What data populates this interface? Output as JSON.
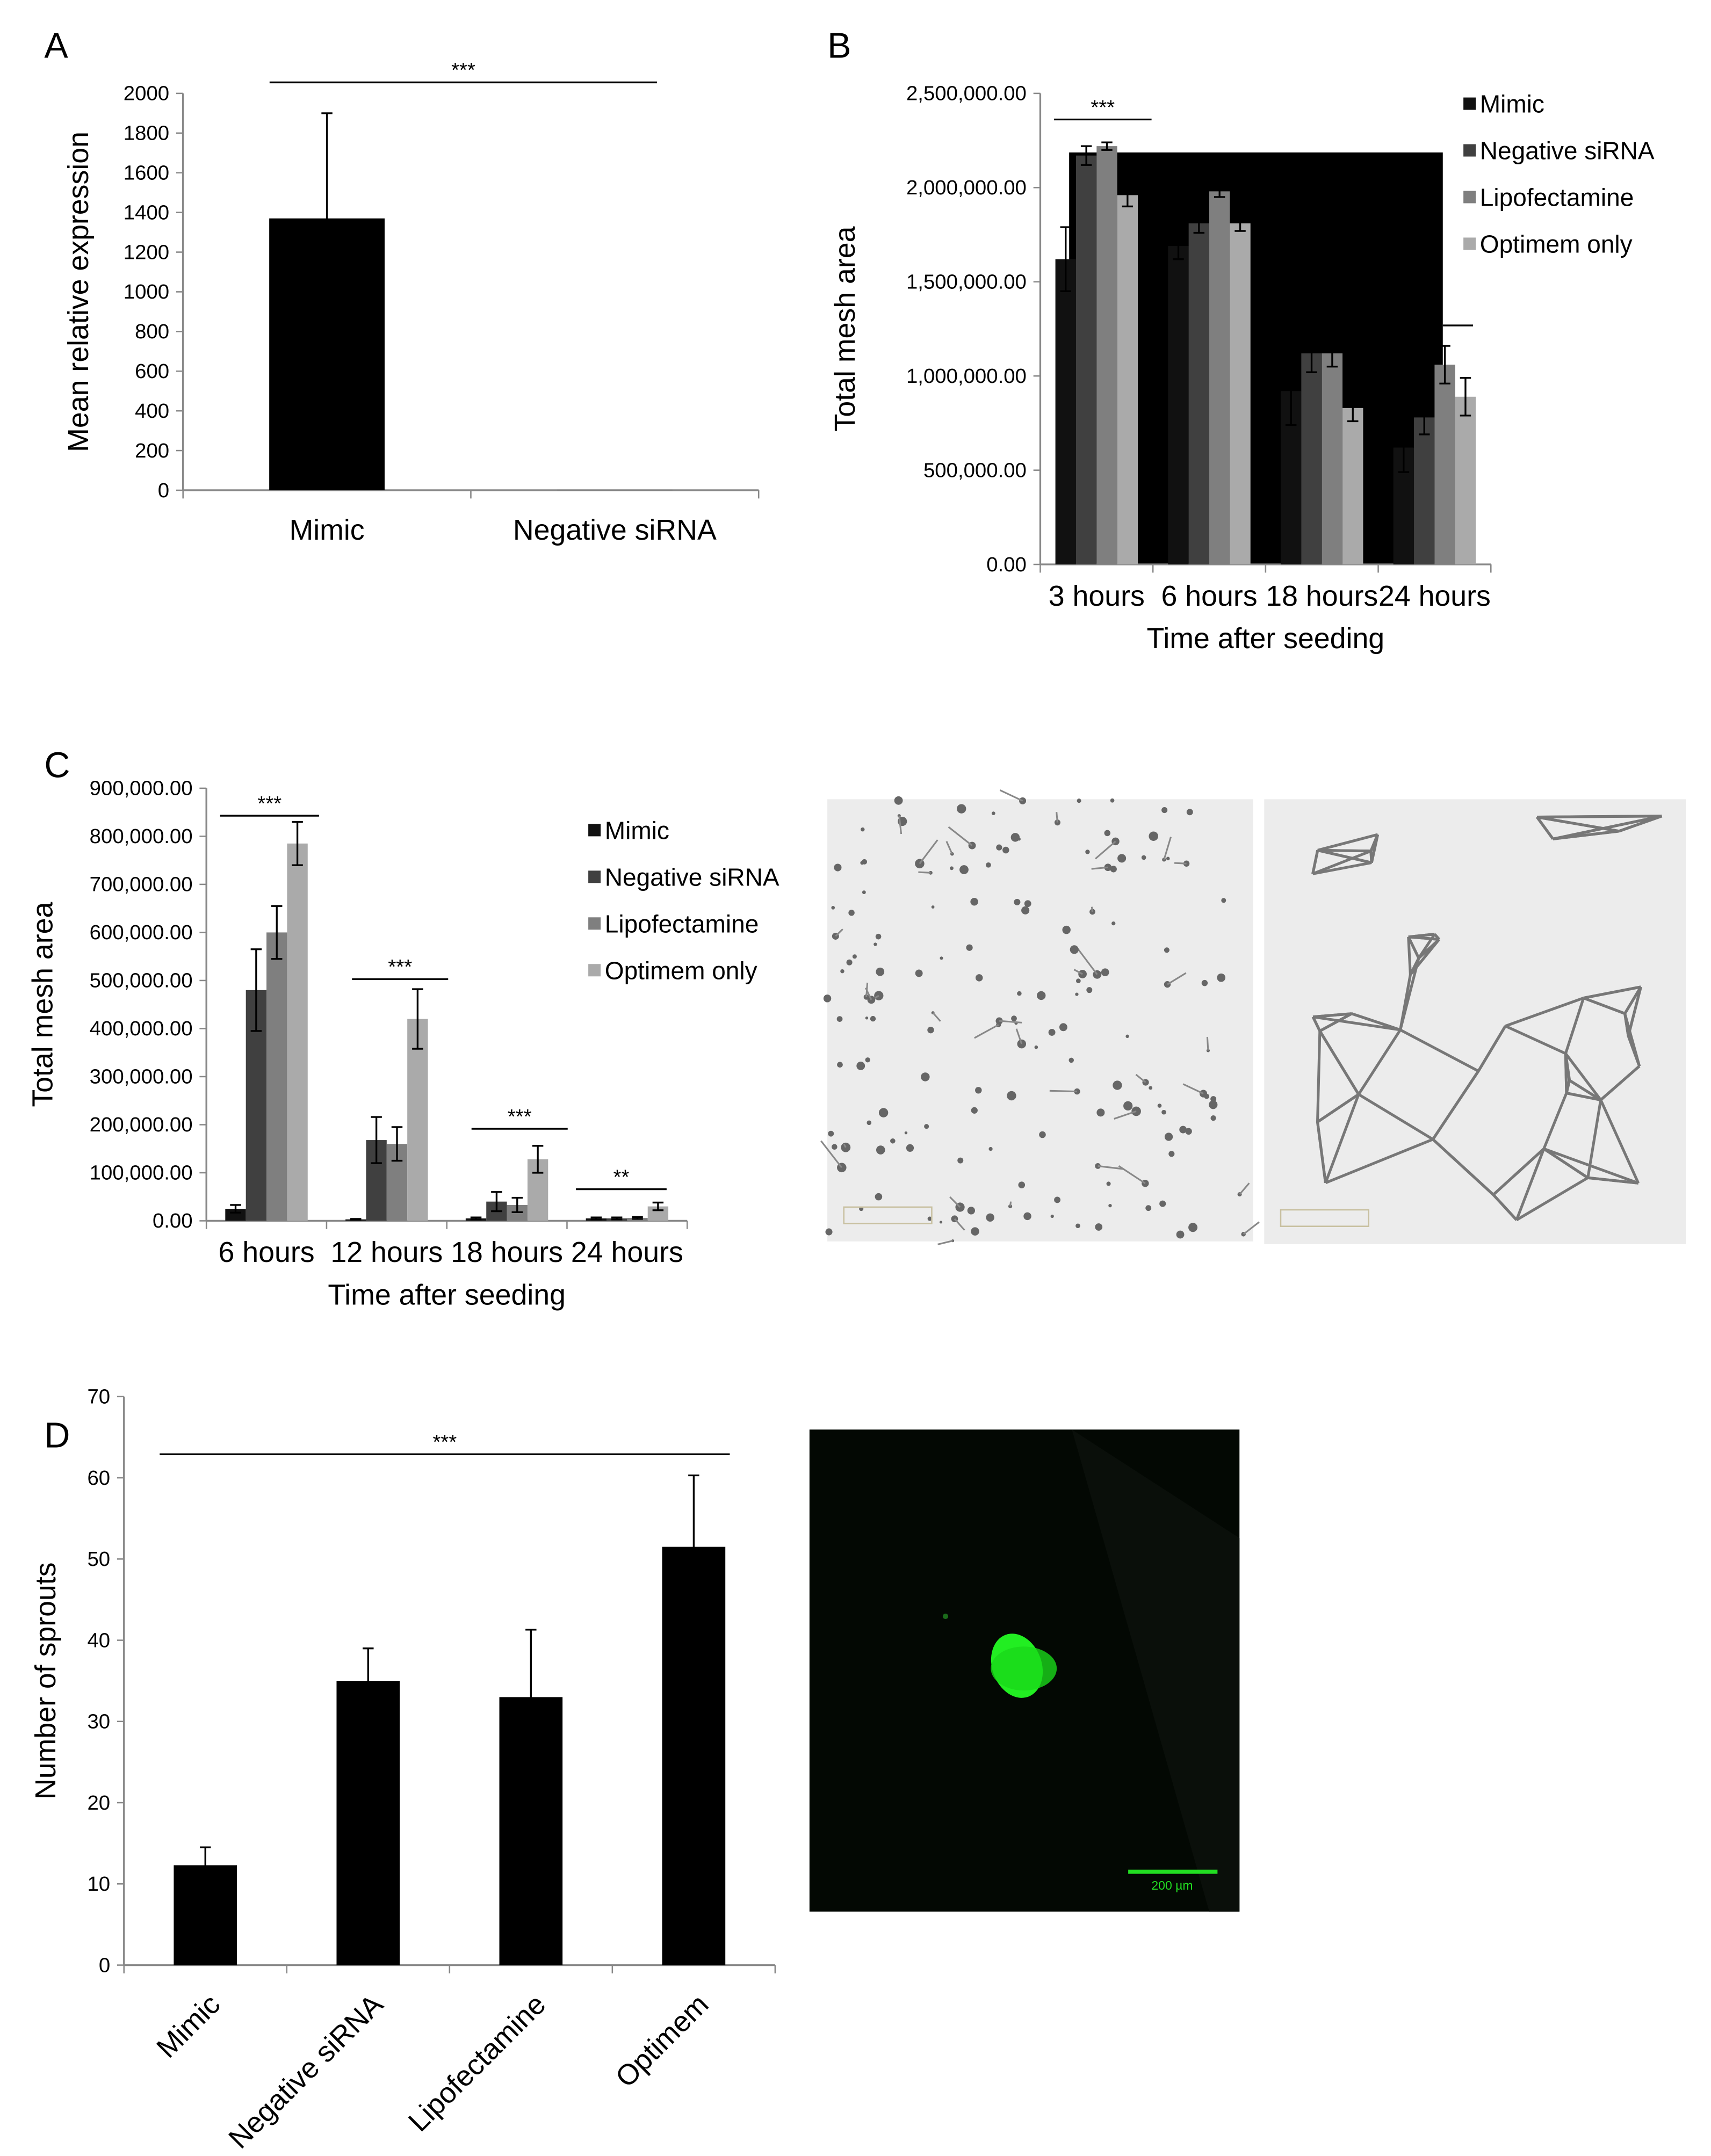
{
  "panels": {
    "a": "A",
    "b": "B",
    "c": "C",
    "d": "D"
  },
  "chart_data": [
    {
      "type": "bar",
      "panel": "A",
      "categories": [
        "Mimic",
        "Negative siRNA"
      ],
      "values": [
        1370,
        2
      ],
      "errors": [
        530,
        0
      ],
      "ylabel": "Mean relative expression",
      "xlabel": "",
      "ylim": [
        0,
        2000
      ],
      "yticks": [
        "0",
        "200",
        "400",
        "600",
        "800",
        "1000",
        "1200",
        "1400",
        "1600",
        "1800",
        "2000"
      ],
      "significance": [
        {
          "label": "***"
        }
      ],
      "colors": [
        "#000000"
      ]
    },
    {
      "type": "bar",
      "panel": "B",
      "categories": [
        "3 hours",
        "6 hours",
        "18 hours",
        "24 hours"
      ],
      "series": [
        {
          "name": "Mimic",
          "color": "#111111",
          "values": [
            1620000,
            1690000,
            920000,
            620000
          ],
          "errors": [
            170000,
            70000,
            180000,
            130000
          ]
        },
        {
          "name": "Negative siRNA",
          "color": "#404040",
          "values": [
            2170000,
            1810000,
            1120000,
            780000
          ],
          "errors": [
            50000,
            50000,
            100000,
            90000
          ]
        },
        {
          "name": "Lipofectamine",
          "color": "#7f7f7f",
          "values": [
            2220000,
            1980000,
            1120000,
            1060000
          ],
          "errors": [
            20000,
            30000,
            70000,
            100000
          ]
        },
        {
          "name": "Optimem only",
          "color": "#aaaaaa",
          "values": [
            1960000,
            1810000,
            830000,
            890000
          ],
          "errors": [
            60000,
            40000,
            70000,
            100000
          ]
        }
      ],
      "ylabel": "Total mesh area",
      "xlabel": "Time after seeding",
      "ylim": [
        0,
        2500000
      ],
      "yticks": [
        "0.00",
        "500,000.00",
        "1,000,000.00",
        "1,500,000.00",
        "2,000,000.00",
        "2,500,000.00"
      ],
      "significance": [
        {
          "label": "***"
        }
      ],
      "legend": "right"
    },
    {
      "type": "bar",
      "panel": "C",
      "categories": [
        "6 hours",
        "12 hours",
        "18 hours",
        "24 hours"
      ],
      "series": [
        {
          "name": "Mimic",
          "color": "#111111",
          "values": [
            25000,
            3000,
            5000,
            5000
          ],
          "errors": [
            8000,
            1000,
            2000,
            2000
          ]
        },
        {
          "name": "Negative siRNA",
          "color": "#404040",
          "values": [
            480000,
            168000,
            40000,
            5000
          ],
          "errors": [
            85000,
            48000,
            20000,
            2000
          ]
        },
        {
          "name": "Lipofectamine",
          "color": "#7f7f7f",
          "values": [
            600000,
            160000,
            33000,
            6000
          ],
          "errors": [
            55000,
            35000,
            15000,
            2000
          ]
        },
        {
          "name": "Optimem only",
          "color": "#aaaaaa",
          "values": [
            785000,
            420000,
            128000,
            30000
          ],
          "errors": [
            45000,
            62000,
            28000,
            8000
          ]
        }
      ],
      "ylabel": "Total mesh area",
      "xlabel": "Time after seeding",
      "ylim": [
        0,
        900000
      ],
      "yticks": [
        "0.00",
        "100,000.00",
        "200,000.00",
        "300,000.00",
        "400,000.00",
        "500,000.00",
        "600,000.00",
        "700,000.00",
        "800,000.00",
        "900,000.00"
      ],
      "significance": [
        {
          "label": "***"
        },
        {
          "label": "***"
        },
        {
          "label": "***"
        },
        {
          "label": "**"
        }
      ],
      "legend": "right"
    },
    {
      "type": "bar",
      "panel": "D",
      "categories": [
        "Mimic",
        "Negative siRNA",
        "Lipofectamine",
        "Optimem"
      ],
      "values": [
        12.3,
        35,
        33,
        51.5
      ],
      "errors": [
        2.2,
        4,
        8.3,
        8.8
      ],
      "ylabel": "Number of sprouts",
      "xlabel": "",
      "ylim": [
        0,
        70
      ],
      "yticks": [
        "0",
        "10",
        "20",
        "30",
        "40",
        "50",
        "60",
        "70"
      ],
      "significance": [
        {
          "label": "***"
        }
      ],
      "colors": [
        "#000000"
      ]
    }
  ],
  "images": {
    "fluorescence_scale": "200 µm",
    "scale_color": "#22dd22"
  }
}
